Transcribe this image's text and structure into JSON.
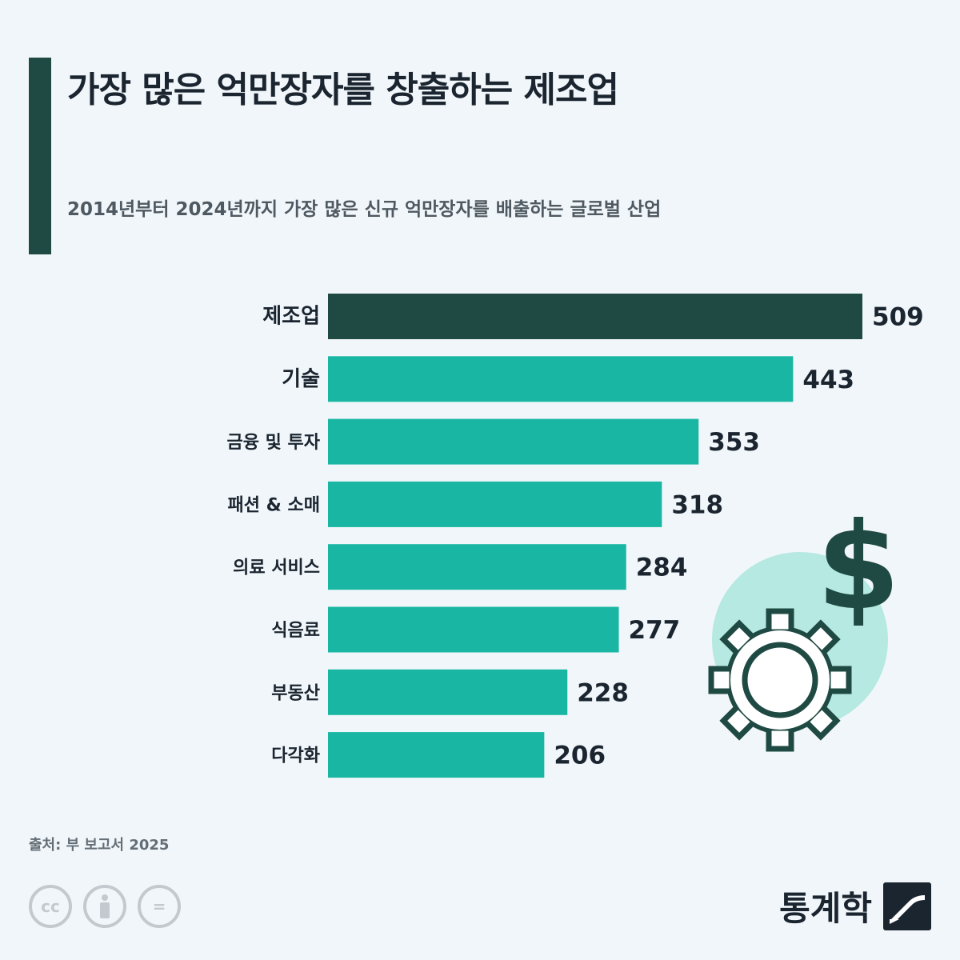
{
  "header": {
    "title": "가장 많은 억만장자를 창출하는 제조업",
    "subtitle": "2014년부터 2024년까지 가장 많은 신규 억만장자를 배출하는 글로벌 산업"
  },
  "chart_data": {
    "type": "bar",
    "orientation": "horizontal",
    "categories": [
      "제조업",
      "기술",
      "금융 및 투자",
      "패션 & 소매",
      "의료 서비스",
      "식음료",
      "부동산",
      "다각화"
    ],
    "values": [
      509,
      443,
      353,
      318,
      284,
      277,
      228,
      206
    ],
    "highlight_index": 0,
    "xlim": [
      0,
      509
    ],
    "grid": false,
    "legend": "none"
  },
  "colors": {
    "highlight": "#1f4a43",
    "bar": "#19b7a3",
    "accent": "#1f4a43"
  },
  "icons": [
    "dollar-icon",
    "gear-icon"
  ],
  "footer": {
    "source": "출처: 부 보고서 2025",
    "license_icons": [
      "cc-icon",
      "by-icon",
      "nd-icon"
    ],
    "license_glyphs": [
      "cc",
      "=",
      "="
    ],
    "brand": "통계학"
  }
}
